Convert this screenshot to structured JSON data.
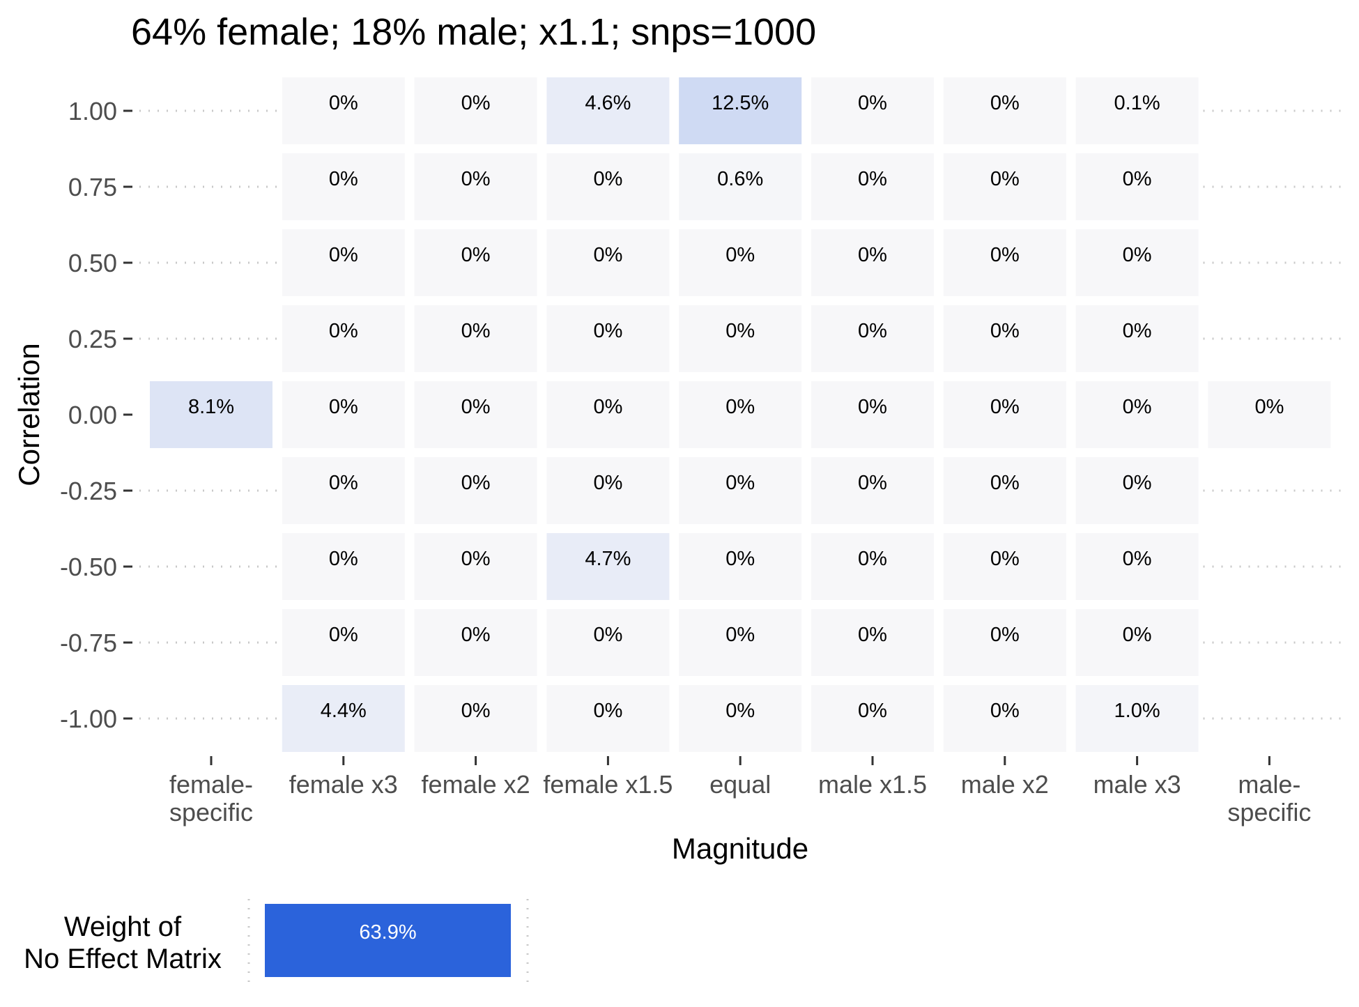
{
  "chart_data": {
    "type": "heatmap",
    "title": "64% female; 18% male; x1.1; snps=1000",
    "xlabel": "Magnitude",
    "ylabel": "Correlation",
    "x_categories": [
      "female-\nspecific",
      "female x3",
      "female x2",
      "female x1.5",
      "equal",
      "male x1.5",
      "male x2",
      "male x3",
      "male-\nspecific"
    ],
    "y_ticks": [
      "1.00",
      "0.75",
      "0.50",
      "0.25",
      "0.00",
      "-0.25",
      "-0.50",
      "-0.75",
      "-1.00"
    ],
    "y_values": [
      1.0,
      0.75,
      0.5,
      0.25,
      0.0,
      -0.25,
      -0.5,
      -0.75,
      -1.0
    ],
    "grid": "dotted horizontal lines where no tile",
    "color_low": "#f7f7f9",
    "color_high": "#2b63db",
    "cells": [
      {
        "x": "female-\nspecific",
        "y": 0.0,
        "value": 8.1,
        "label": "8.1%"
      },
      {
        "x": "female x3",
        "y": 1.0,
        "value": 0,
        "label": "0%"
      },
      {
        "x": "female x3",
        "y": 0.75,
        "value": 0,
        "label": "0%"
      },
      {
        "x": "female x3",
        "y": 0.5,
        "value": 0,
        "label": "0%"
      },
      {
        "x": "female x3",
        "y": 0.25,
        "value": 0,
        "label": "0%"
      },
      {
        "x": "female x3",
        "y": 0.0,
        "value": 0,
        "label": "0%"
      },
      {
        "x": "female x3",
        "y": -0.25,
        "value": 0,
        "label": "0%"
      },
      {
        "x": "female x3",
        "y": -0.5,
        "value": 0,
        "label": "0%"
      },
      {
        "x": "female x3",
        "y": -0.75,
        "value": 0,
        "label": "0%"
      },
      {
        "x": "female x3",
        "y": -1.0,
        "value": 4.4,
        "label": "4.4%"
      },
      {
        "x": "female x2",
        "y": 1.0,
        "value": 0,
        "label": "0%"
      },
      {
        "x": "female x2",
        "y": 0.75,
        "value": 0,
        "label": "0%"
      },
      {
        "x": "female x2",
        "y": 0.5,
        "value": 0,
        "label": "0%"
      },
      {
        "x": "female x2",
        "y": 0.25,
        "value": 0,
        "label": "0%"
      },
      {
        "x": "female x2",
        "y": 0.0,
        "value": 0,
        "label": "0%"
      },
      {
        "x": "female x2",
        "y": -0.25,
        "value": 0,
        "label": "0%"
      },
      {
        "x": "female x2",
        "y": -0.5,
        "value": 0,
        "label": "0%"
      },
      {
        "x": "female x2",
        "y": -0.75,
        "value": 0,
        "label": "0%"
      },
      {
        "x": "female x2",
        "y": -1.0,
        "value": 0,
        "label": "0%"
      },
      {
        "x": "female x1.5",
        "y": 1.0,
        "value": 4.6,
        "label": "4.6%"
      },
      {
        "x": "female x1.5",
        "y": 0.75,
        "value": 0,
        "label": "0%"
      },
      {
        "x": "female x1.5",
        "y": 0.5,
        "value": 0,
        "label": "0%"
      },
      {
        "x": "female x1.5",
        "y": 0.25,
        "value": 0,
        "label": "0%"
      },
      {
        "x": "female x1.5",
        "y": 0.0,
        "value": 0,
        "label": "0%"
      },
      {
        "x": "female x1.5",
        "y": -0.25,
        "value": 0,
        "label": "0%"
      },
      {
        "x": "female x1.5",
        "y": -0.5,
        "value": 4.7,
        "label": "4.7%"
      },
      {
        "x": "female x1.5",
        "y": -0.75,
        "value": 0,
        "label": "0%"
      },
      {
        "x": "female x1.5",
        "y": -1.0,
        "value": 0,
        "label": "0%"
      },
      {
        "x": "equal",
        "y": 1.0,
        "value": 12.5,
        "label": "12.5%"
      },
      {
        "x": "equal",
        "y": 0.75,
        "value": 0.6,
        "label": "0.6%"
      },
      {
        "x": "equal",
        "y": 0.5,
        "value": 0,
        "label": "0%"
      },
      {
        "x": "equal",
        "y": 0.25,
        "value": 0,
        "label": "0%"
      },
      {
        "x": "equal",
        "y": 0.0,
        "value": 0,
        "label": "0%"
      },
      {
        "x": "equal",
        "y": -0.25,
        "value": 0,
        "label": "0%"
      },
      {
        "x": "equal",
        "y": -0.5,
        "value": 0,
        "label": "0%"
      },
      {
        "x": "equal",
        "y": -0.75,
        "value": 0,
        "label": "0%"
      },
      {
        "x": "equal",
        "y": -1.0,
        "value": 0,
        "label": "0%"
      },
      {
        "x": "male x1.5",
        "y": 1.0,
        "value": 0,
        "label": "0%"
      },
      {
        "x": "male x1.5",
        "y": 0.75,
        "value": 0,
        "label": "0%"
      },
      {
        "x": "male x1.5",
        "y": 0.5,
        "value": 0,
        "label": "0%"
      },
      {
        "x": "male x1.5",
        "y": 0.25,
        "value": 0,
        "label": "0%"
      },
      {
        "x": "male x1.5",
        "y": 0.0,
        "value": 0,
        "label": "0%"
      },
      {
        "x": "male x1.5",
        "y": -0.25,
        "value": 0,
        "label": "0%"
      },
      {
        "x": "male x1.5",
        "y": -0.5,
        "value": 0,
        "label": "0%"
      },
      {
        "x": "male x1.5",
        "y": -0.75,
        "value": 0,
        "label": "0%"
      },
      {
        "x": "male x1.5",
        "y": -1.0,
        "value": 0,
        "label": "0%"
      },
      {
        "x": "male x2",
        "y": 1.0,
        "value": 0,
        "label": "0%"
      },
      {
        "x": "male x2",
        "y": 0.75,
        "value": 0,
        "label": "0%"
      },
      {
        "x": "male x2",
        "y": 0.5,
        "value": 0,
        "label": "0%"
      },
      {
        "x": "male x2",
        "y": 0.25,
        "value": 0,
        "label": "0%"
      },
      {
        "x": "male x2",
        "y": 0.0,
        "value": 0,
        "label": "0%"
      },
      {
        "x": "male x2",
        "y": -0.25,
        "value": 0,
        "label": "0%"
      },
      {
        "x": "male x2",
        "y": -0.5,
        "value": 0,
        "label": "0%"
      },
      {
        "x": "male x2",
        "y": -0.75,
        "value": 0,
        "label": "0%"
      },
      {
        "x": "male x2",
        "y": -1.0,
        "value": 0,
        "label": "0%"
      },
      {
        "x": "male x3",
        "y": 1.0,
        "value": 0.1,
        "label": "0.1%"
      },
      {
        "x": "male x3",
        "y": 0.75,
        "value": 0,
        "label": "0%"
      },
      {
        "x": "male x3",
        "y": 0.5,
        "value": 0,
        "label": "0%"
      },
      {
        "x": "male x3",
        "y": 0.25,
        "value": 0,
        "label": "0%"
      },
      {
        "x": "male x3",
        "y": 0.0,
        "value": 0,
        "label": "0%"
      },
      {
        "x": "male x3",
        "y": -0.25,
        "value": 0,
        "label": "0%"
      },
      {
        "x": "male x3",
        "y": -0.5,
        "value": 0,
        "label": "0%"
      },
      {
        "x": "male x3",
        "y": -0.75,
        "value": 0,
        "label": "0%"
      },
      {
        "x": "male x3",
        "y": -1.0,
        "value": 1.0,
        "label": "1.0%"
      },
      {
        "x": "male-\nspecific",
        "y": 0.0,
        "value": 0,
        "label": "0%"
      }
    ],
    "no_effect": {
      "label": "Weight of\nNo Effect Matrix",
      "value": 63.9,
      "value_label": "63.9%"
    }
  }
}
